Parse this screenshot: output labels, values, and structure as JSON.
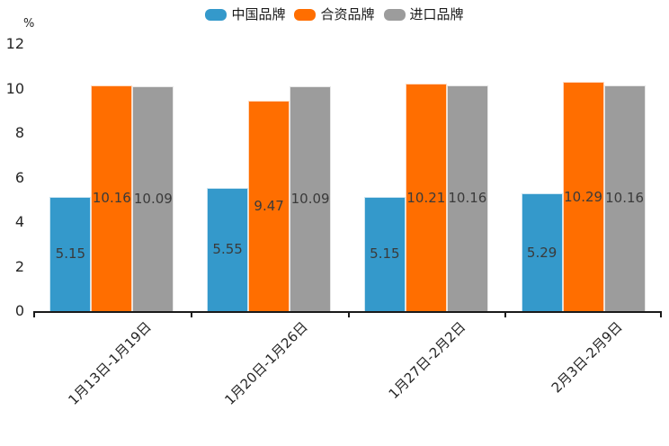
{
  "chart_data": {
    "type": "bar",
    "title": "",
    "unit_label": "%",
    "categories": [
      "1月13日-1月19日",
      "1月20日-1月26日",
      "1月27日-2月2日",
      "2月3日-2月9日"
    ],
    "series": [
      {
        "name": "中国品牌",
        "color": "#3499CB",
        "values": [
          5.15,
          5.55,
          5.15,
          5.29
        ]
      },
      {
        "name": "合资品牌",
        "color": "#FF6E00",
        "values": [
          10.16,
          9.47,
          10.21,
          10.29
        ]
      },
      {
        "name": "进口品牌",
        "color": "#9C9C9C",
        "values": [
          10.09,
          10.09,
          10.16,
          10.16
        ]
      }
    ],
    "ylim": [
      0,
      12
    ],
    "yticks": [
      12,
      10,
      8,
      6,
      4,
      2,
      0
    ],
    "grid": false,
    "legend_position": "top",
    "value_labels": "inside-center",
    "axis_color": "#1a1a1a",
    "label_color": "#3a3a3a"
  }
}
